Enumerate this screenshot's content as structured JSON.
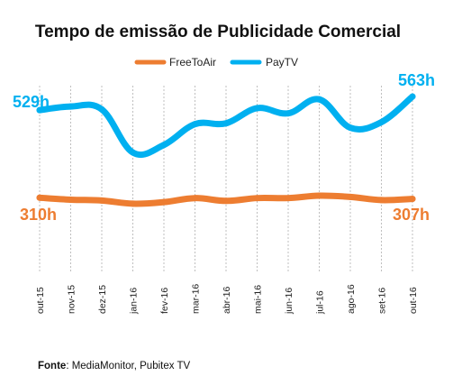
{
  "chart_data": {
    "type": "line",
    "title": "Tempo de emissão de Publicidade Comercial",
    "categories": [
      "out-15",
      "nov-15",
      "dez-15",
      "jan-16",
      "fev-16",
      "mar-16",
      "abr-16",
      "mai-16",
      "jun-16",
      "jul-16",
      "ago-16",
      "set-16",
      "out-16"
    ],
    "series": [
      {
        "name": "FreeToAir",
        "color": "#ed7d31",
        "values": [
          310,
          305,
          303,
          295,
          299,
          309,
          302,
          309,
          309,
          315,
          312,
          304,
          307
        ],
        "start_label": "310h",
        "end_label": "307h"
      },
      {
        "name": "PayTV",
        "color": "#00b0f0",
        "values": [
          529,
          538,
          531,
          423,
          442,
          494,
          496,
          534,
          521,
          556,
          485,
          499,
          563
        ],
        "start_label": "529h",
        "end_label": "563h"
      }
    ],
    "grid": "vertical-dotted",
    "legend_position": "top-center"
  },
  "source": {
    "label": "Fonte",
    "text": ": MediaMonitor, Pubitex TV"
  }
}
